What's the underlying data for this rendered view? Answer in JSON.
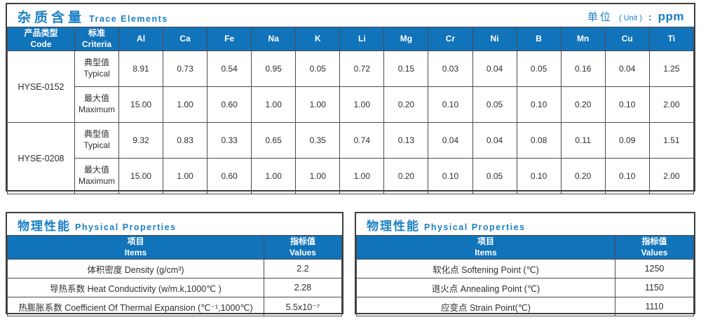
{
  "colors": {
    "header_blue": "#1173ba",
    "accent_blue": "#1b80c4",
    "frame_border": "#3e3e3e",
    "grid_border": "#4d4d4d"
  },
  "trace": {
    "title_cn": "杂质含量",
    "title_en": "Trace Elements",
    "unit_label_cn": "单位",
    "unit_label_en": "( Unit )",
    "unit_colon": ":",
    "unit_value": "ppm",
    "header_code_cn": "产品类型",
    "header_code_en": "Code",
    "header_criteria_cn": "标准",
    "header_criteria_en": "Criteria",
    "elements": [
      "Al",
      "Ca",
      "Fe",
      "Na",
      "K",
      "Li",
      "Mg",
      "Cr",
      "Ni",
      "B",
      "Mn",
      "Cu",
      "Ti"
    ],
    "typical_label_cn": "典型值",
    "typical_label_en": "Typical",
    "maximum_label_cn": "最大值",
    "maximum_label_en": "Maximum",
    "products": [
      {
        "code": "HYSE-0152",
        "typical": [
          "8.91",
          "0.73",
          "0.54",
          "0.95",
          "0.05",
          "0.72",
          "0.15",
          "0.03",
          "0.04",
          "0.05",
          "0.16",
          "0.04",
          "1.25"
        ],
        "maximum": [
          "15.00",
          "1.00",
          "0.60",
          "1.00",
          "1.00",
          "1.00",
          "0.20",
          "0.10",
          "0.05",
          "0.10",
          "0.20",
          "0.10",
          "2.00"
        ]
      },
      {
        "code": "HYSE-0208",
        "typical": [
          "9.32",
          "0.83",
          "0.33",
          "0.65",
          "0.35",
          "0.74",
          "0.13",
          "0.04",
          "0.04",
          "0.08",
          "0.11",
          "0.09",
          "1.51"
        ],
        "maximum": [
          "15.00",
          "1.00",
          "0.60",
          "1.00",
          "1.00",
          "1.00",
          "0.20",
          "0.10",
          "0.05",
          "0.10",
          "0.20",
          "0.10",
          "2.00"
        ]
      }
    ]
  },
  "physical_tables": [
    {
      "title_cn": "物理性能",
      "title_en": "Physical Properties",
      "header_items_cn": "项目",
      "header_items_en": "Items",
      "header_values_cn": "指标值",
      "header_values_en": "Values",
      "rows": [
        {
          "item": "体积密度 Density (g/cm³)",
          "value": "2.2"
        },
        {
          "item": "导热系数 Heat Conductivity (w/m.k,1000℃ )",
          "value": "2.28"
        },
        {
          "item": "热膨胀系数 Coefficient Of Thermal Expansion (℃⁻¹,1000℃)",
          "value": "5.5x10⁻⁷"
        }
      ]
    },
    {
      "title_cn": "物理性能",
      "title_en": "Physical Properties",
      "header_items_cn": "项目",
      "header_items_en": "Items",
      "header_values_cn": "指标值",
      "header_values_en": "Values",
      "rows": [
        {
          "item": "软化点 Softening Point (℃)",
          "value": "1250"
        },
        {
          "item": "退火点 Annealing Point (℃)",
          "value": "1150"
        },
        {
          "item": "应变点 Strain Point(℃)",
          "value": "1110"
        }
      ]
    }
  ]
}
